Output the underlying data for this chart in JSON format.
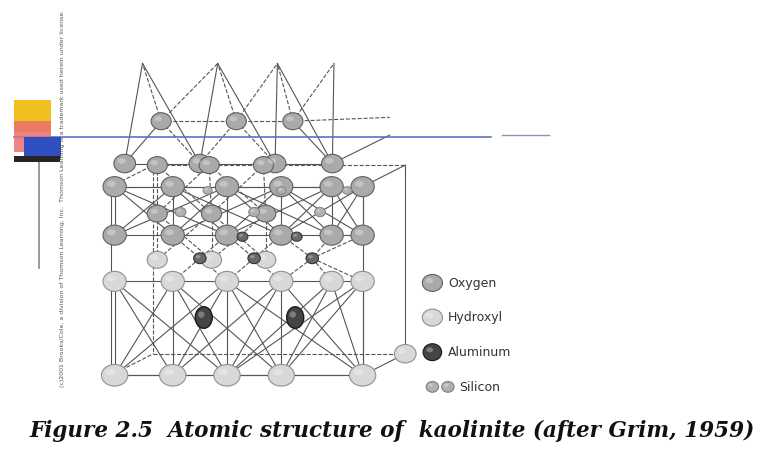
{
  "title": "Figure 2.5  Atomic structure of  kaolinite (after Grim, 1959)",
  "background_color": "#ffffff",
  "copyright_text": "(c)2001 Brooks/Cole, a division of Thomson Learning, Inc.  Thomson Learning is a trademark used herein under license.",
  "lc": "#555555",
  "lw": 0.8,
  "c_oxygen": "#aaaaaa",
  "c_hydroxyl": "#d8d8d8",
  "c_aluminum": "#686868",
  "c_aluminum_dark": "#444444",
  "c_silicon": "#b0b0b0",
  "ec_oxygen": "#606060",
  "ec_hydroxyl": "#909090",
  "ec_aluminum": "#303030",
  "ec_silicon": "#808080"
}
